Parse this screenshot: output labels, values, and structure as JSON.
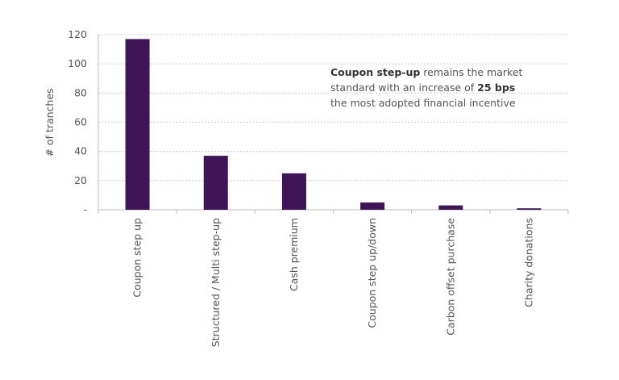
{
  "chart_data": {
    "type": "bar",
    "title": "",
    "xlabel": "",
    "ylabel": "# of tranches",
    "ylim": [
      0,
      120
    ],
    "yticks": [
      0,
      20,
      40,
      60,
      80,
      100,
      120
    ],
    "ytick_labels": [
      "-",
      "20",
      "40",
      "60",
      "80",
      "100",
      "120"
    ],
    "grid": true,
    "categories": [
      "Coupon step up",
      "Structured / Multi step-up",
      "Cash premium",
      "Coupon step up/down",
      "Carbon offset purchase",
      "Charity donations"
    ],
    "values": [
      117,
      37,
      25,
      5,
      3,
      1
    ],
    "bar_color": "#3f1558",
    "annotation": {
      "line1_bold": "Coupon step-up",
      "line1_rest": " remains the market",
      "line2_pre": "standard with an increase of ",
      "line2_bold": "25 bps",
      "line3": "the most adopted financial incentive"
    }
  }
}
